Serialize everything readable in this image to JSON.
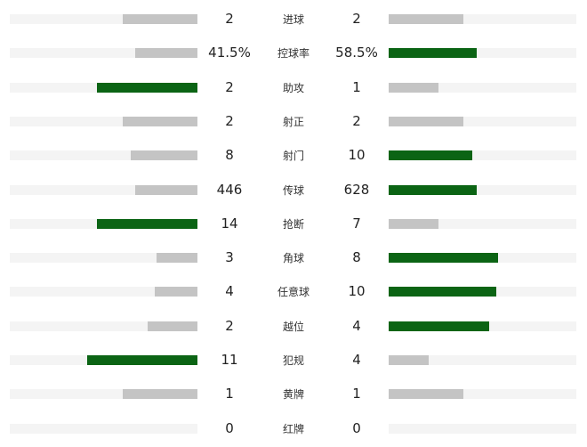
{
  "colors": {
    "leader": "#0b6414",
    "other": "#c4c4c4",
    "track": "#f4f4f4"
  },
  "stats": [
    {
      "label": "进球",
      "home": "2",
      "away": "2"
    },
    {
      "label": "控球率",
      "home": "41.5%",
      "away": "58.5%"
    },
    {
      "label": "助攻",
      "home": "2",
      "away": "1"
    },
    {
      "label": "射正",
      "home": "2",
      "away": "2"
    },
    {
      "label": "射门",
      "home": "8",
      "away": "10"
    },
    {
      "label": "传球",
      "home": "446",
      "away": "628"
    },
    {
      "label": "抢断",
      "home": "14",
      "away": "7"
    },
    {
      "label": "角球",
      "home": "3",
      "away": "8"
    },
    {
      "label": "任意球",
      "home": "4",
      "away": "10"
    },
    {
      "label": "越位",
      "home": "2",
      "away": "4"
    },
    {
      "label": "犯规",
      "home": "11",
      "away": "4"
    },
    {
      "label": "黄牌",
      "home": "1",
      "away": "1"
    },
    {
      "label": "红牌",
      "home": "0",
      "away": "0"
    }
  ]
}
